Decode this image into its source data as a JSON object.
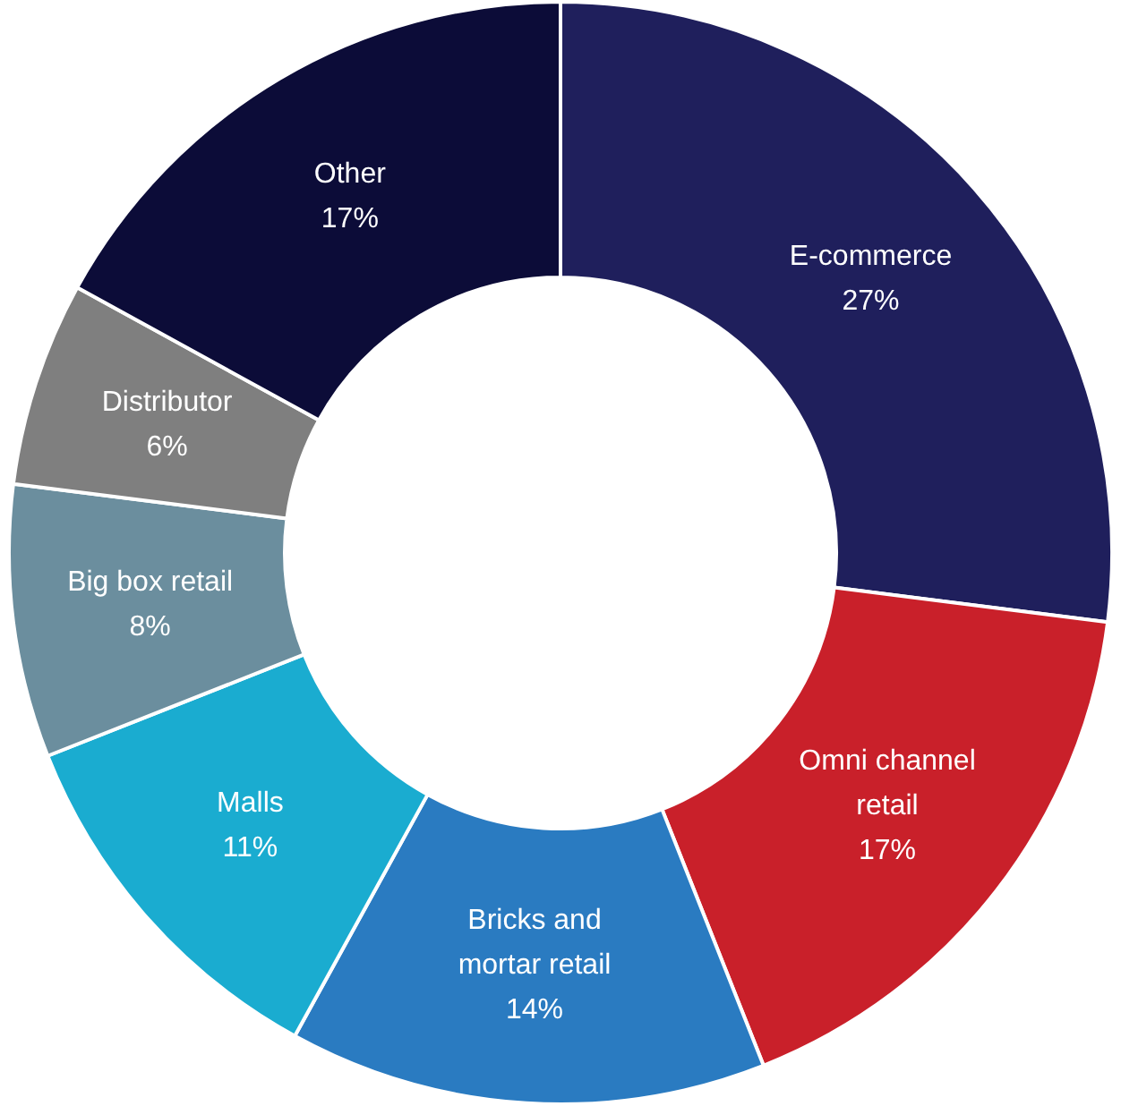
{
  "chart_data": {
    "type": "donut",
    "categories": [
      "E-commerce",
      "Omni channel retail",
      "Bricks and mortar retail",
      "Malls",
      "Big box retail",
      "Distributor",
      "Other"
    ],
    "values": [
      27,
      17,
      14,
      11,
      8,
      6,
      17
    ],
    "value_labels": [
      "27%",
      "17%",
      "14%",
      "11%",
      "8%",
      "6%",
      "17%"
    ],
    "colors": [
      "#1f1f5c",
      "#c9202a",
      "#2a7bc1",
      "#1aacd0",
      "#6b8e9e",
      "#7f7f7f",
      "#0c0c38"
    ],
    "legend": false
  }
}
